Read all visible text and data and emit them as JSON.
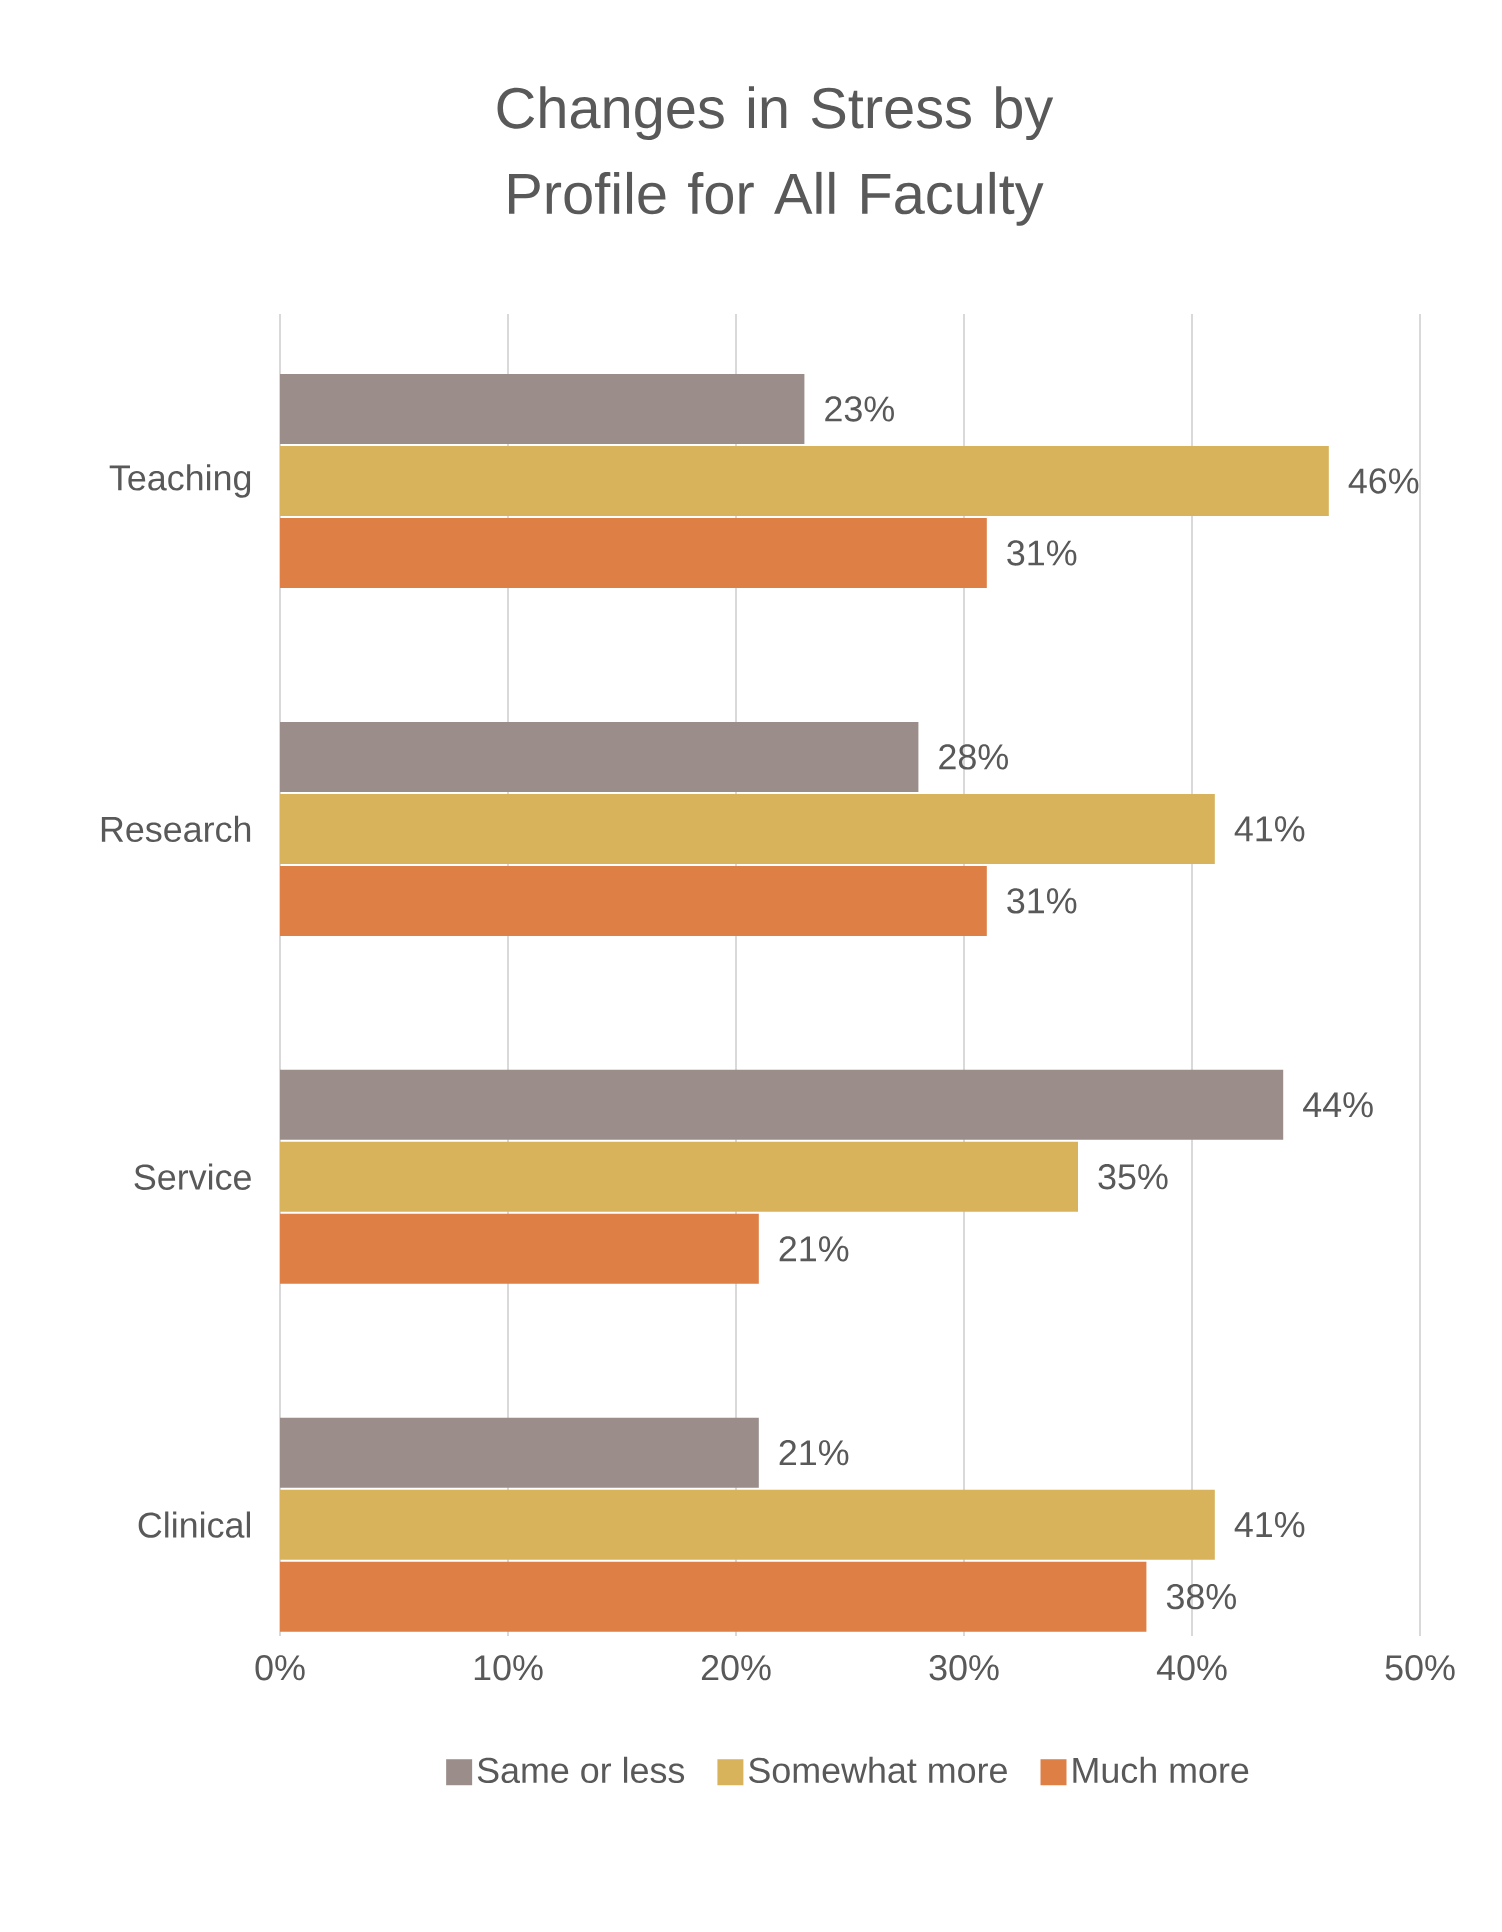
{
  "chart_data": {
    "type": "bar",
    "orientation": "horizontal",
    "title": "Changes in Stress by Profile for All Faculty",
    "categories": [
      "Teaching",
      "Research",
      "Service",
      "Clinical"
    ],
    "series": [
      {
        "name": "Same or less",
        "color": "#9a8d8a",
        "values": [
          23,
          28,
          44,
          21
        ],
        "value_labels": [
          "23%",
          "28%",
          "44%",
          "21%"
        ]
      },
      {
        "name": "Somewhat more",
        "color": "#d9b35c",
        "values": [
          46,
          41,
          35,
          41
        ],
        "value_labels": [
          "46%",
          "41%",
          "35%",
          "41%"
        ]
      },
      {
        "name": "Much more",
        "color": "#de7f45",
        "values": [
          31,
          31,
          21,
          38
        ],
        "value_labels": [
          "31%",
          "31%",
          "21%",
          "38%"
        ]
      }
    ],
    "xlim": [
      0,
      50
    ],
    "xticks": [
      {
        "value": 0,
        "label": "0%"
      },
      {
        "value": 10,
        "label": "10%"
      },
      {
        "value": 20,
        "label": "20%"
      },
      {
        "value": 30,
        "label": "30%"
      },
      {
        "value": 40,
        "label": "40%"
      },
      {
        "value": 50,
        "label": "50%"
      }
    ],
    "grid": "x",
    "legend": "bottom"
  }
}
